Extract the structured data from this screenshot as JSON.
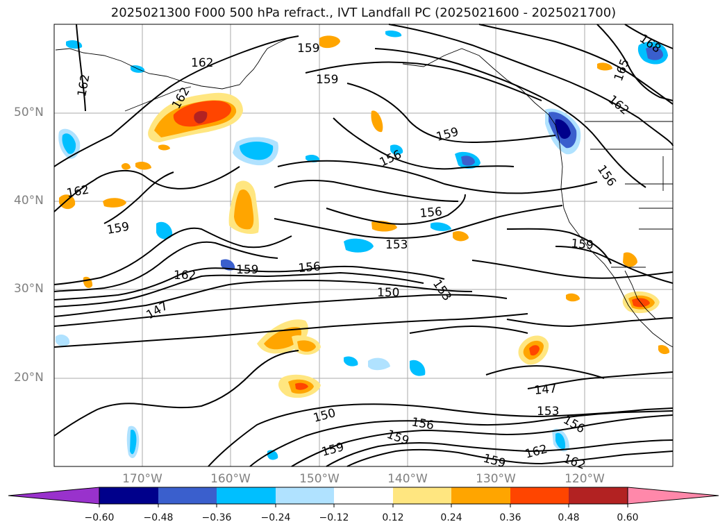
{
  "title": "2025021300 F000 500 hPa refract., IVT Landfall PC (2025021600 - 2025021700)",
  "map": {
    "lat_ticks": [
      "50°N",
      "40°N",
      "30°N",
      "20°N"
    ],
    "lon_ticks": [
      "170°W",
      "160°W",
      "150°W",
      "140°W",
      "130°W",
      "120°W"
    ],
    "contour_labels": [
      "162",
      "162",
      "162",
      "159",
      "159",
      "159",
      "159",
      "162",
      "159",
      "156",
      "156",
      "153",
      "150",
      "153",
      "147",
      "147",
      "150",
      "156",
      "159",
      "159",
      "162",
      "162",
      "159",
      "156",
      "153",
      "156",
      "162",
      "165",
      "168",
      "162",
      "156",
      "159"
    ]
  },
  "colorbar": {
    "ticks": [
      "−0.60",
      "−0.48",
      "−0.36",
      "−0.24",
      "−0.12",
      "0.12",
      "0.24",
      "0.36",
      "0.48",
      "0.60"
    ],
    "colors": [
      "#9932cc",
      "#00008b",
      "#3a5fcd",
      "#00bfff",
      "#b0e2ff",
      "#ffffff",
      "#ffe680",
      "#ffa500",
      "#ff4500",
      "#b22222",
      "#ff88aa"
    ]
  }
}
